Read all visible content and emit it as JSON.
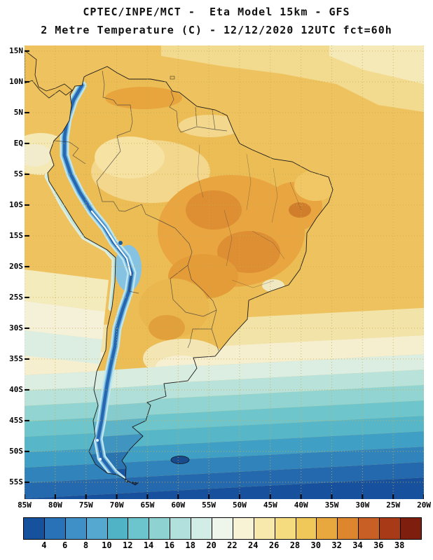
{
  "header": {
    "line1": "CPTEC/INPE/MCT -  Eta Model 15km - GFS",
    "line2": "2 Metre Temperature (C) - 12/12/2020 12UTC fct=60h"
  },
  "axes": {
    "lat_labels": [
      "15N",
      "10N",
      "5N",
      "EQ",
      "5S",
      "10S",
      "15S",
      "20S",
      "25S",
      "30S",
      "35S",
      "40S",
      "45S",
      "50S",
      "55S"
    ],
    "lon_labels": [
      "85W",
      "80W",
      "75W",
      "70W",
      "65W",
      "60W",
      "55W",
      "50W",
      "45W",
      "40W",
      "35W",
      "30W",
      "25W",
      "20W"
    ]
  },
  "colorbar": {
    "tick_labels": [
      "4",
      "6",
      "8",
      "10",
      "12",
      "14",
      "16",
      "18",
      "20",
      "22",
      "24",
      "26",
      "28",
      "30",
      "32",
      "34",
      "36",
      "38"
    ],
    "segment_colors": [
      "#15519c",
      "#2a72b8",
      "#4090c8",
      "#55a8d0",
      "#50b4c6",
      "#6cc4cc",
      "#8fd2d2",
      "#b2e0dc",
      "#d2ece6",
      "#eef6ec",
      "#f8f3d4",
      "#f7e9ac",
      "#f5dc7e",
      "#f0c85a",
      "#e9a83e",
      "#de862e",
      "#c85f24",
      "#a83a18",
      "#7e1e0e"
    ]
  },
  "chart_data": {
    "type": "heatmap",
    "title": "2 Metre Temperature (C) - 12/12/2020 12UTC fct=60h",
    "subtitle": "CPTEC/INPE/MCT -  Eta Model 15km - GFS",
    "units": "C",
    "scale_min": 4,
    "scale_max": 38,
    "scale_step": 2,
    "lat_range": [
      "15N",
      "55S"
    ],
    "lon_range": [
      "85W",
      "20W"
    ],
    "legend_position": "bottom"
  }
}
